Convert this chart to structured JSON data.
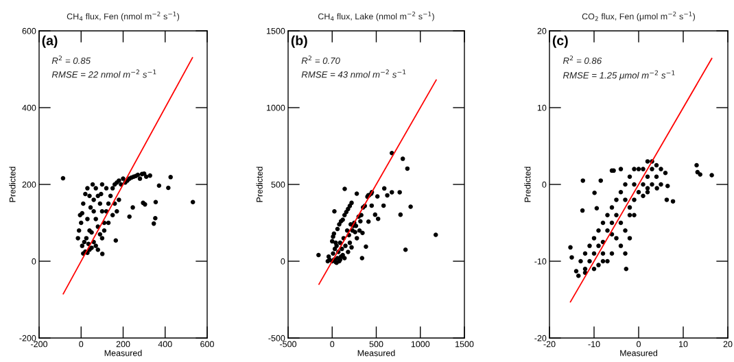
{
  "chart_data": [
    {
      "type": "scatter",
      "title": "CH$_{4}$ flux, Fen (nmol m$^{−2}$ s$^{−1}$)",
      "xlabel": "Measured",
      "ylabel": "Predicted",
      "xlim": [
        -200,
        600
      ],
      "ylim": [
        -200,
        600
      ],
      "xticks": [
        -200,
        0,
        200,
        400,
        600
      ],
      "yticks": [
        -200,
        0,
        200,
        400,
        600
      ],
      "annotations": [
        "(a)",
        "R$^{2}$ = 0.85",
        "RMSE = 22 nmol m$^{−2}$ s$^{−1}$"
      ],
      "grid": false,
      "series": [
        {
          "color": "#000000",
          "marker": "circle",
          "x": [
            -86,
            426,
            532,
            371,
            415,
            346,
            353,
            355,
            295,
            304,
            230,
            246,
            165,
            101,
            328,
            290,
            10,
            20,
            30,
            40,
            5,
            15,
            25,
            35,
            50,
            60,
            70,
            80,
            -10,
            0,
            -5,
            5,
            10,
            20,
            30,
            55,
            40,
            45,
            60,
            70,
            80,
            90,
            100,
            110,
            120,
            130,
            140,
            150,
            160,
            170,
            180,
            190,
            200,
            210,
            220,
            230,
            240,
            250,
            260,
            270,
            280,
            300,
            310,
            160,
            170,
            180,
            150,
            130,
            110,
            100,
            90,
            80,
            70,
            100,
            120,
            60,
            30,
            40,
            50,
            -15,
            95
          ],
          "values": [
            216,
            219,
            154,
            197,
            191,
            98,
            112,
            154,
            152,
            148,
            116,
            140,
            54,
            19,
            223,
            227,
            20,
            25,
            22,
            30,
            40,
            50,
            60,
            45,
            35,
            50,
            40,
            30,
            80,
            100,
            120,
            125,
            150,
            175,
            190,
            200,
            170,
            140,
            130,
            110,
            90,
            70,
            60,
            100,
            130,
            150,
            170,
            190,
            200,
            205,
            210,
            200,
            215,
            205,
            210,
            215,
            218,
            220,
            222,
            225,
            215,
            228,
            220,
            150,
            130,
            160,
            120,
            100,
            80,
            130,
            150,
            170,
            190,
            200,
            190,
            160,
            110,
            80,
            75,
            60,
            175
          ]
        },
        {
          "type": "line",
          "color": "#ff0000",
          "x": [
            -85,
            530
          ],
          "values": [
            -85,
            530
          ]
        }
      ]
    },
    {
      "type": "scatter",
      "title": "CH$_{4}$ flux, Lake (nmol m$^{−2}$ s$^{−1}$)",
      "xlabel": "Measured",
      "ylabel": "Predicted",
      "xlim": [
        -500,
        1500
      ],
      "ylim": [
        -500,
        1500
      ],
      "xticks": [
        -500,
        0,
        500,
        1000,
        1500
      ],
      "yticks": [
        -500,
        0,
        500,
        1000,
        1500
      ],
      "annotations": [
        "(b)",
        "R$^{2}$ = 0.70",
        "RMSE = 43 nmol m$^{−2}$ s$^{−1}$"
      ],
      "grid": false,
      "series": [
        {
          "color": "#000000",
          "marker": "circle",
          "x": [
            677,
            801,
            853,
            1175,
            832,
            890,
            775,
            766,
            677,
            591,
            625,
            142,
            279,
            521,
            487,
            412,
            344,
            339,
            383,
            -155,
            25,
            513,
            583,
            448,
            443,
            0,
            20,
            40,
            60,
            80,
            100,
            10,
            30,
            50,
            70,
            90,
            110,
            130,
            150,
            170,
            190,
            210,
            230,
            250,
            270,
            0,
            10,
            20,
            40,
            60,
            80,
            100,
            120,
            140,
            160,
            180,
            200,
            220,
            240,
            260,
            280,
            300,
            320,
            120,
            140,
            -30,
            -40,
            -50,
            50,
            90,
            200,
            220,
            180,
            350,
            370,
            400,
            410,
            420,
            450,
            330,
            310
          ],
          "values": [
            704,
            667,
            603,
            172,
            75,
            355,
            303,
            449,
            449,
            474,
            429,
            471,
            440,
            276,
            303,
            258,
            184,
            20,
            95,
            40,
            325,
            422,
            362,
            362,
            440,
            0,
            10,
            -5,
            20,
            0,
            30,
            50,
            80,
            100,
            60,
            120,
            80,
            150,
            100,
            200,
            170,
            240,
            200,
            250,
            230,
            130,
            160,
            180,
            120,
            210,
            240,
            260,
            270,
            300,
            320,
            340,
            360,
            380,
            230,
            190,
            150,
            290,
            260,
            40,
            20,
            10,
            30,
            0,
            -10,
            10,
            120,
            90,
            60,
            350,
            360,
            420,
            430,
            430,
            450,
            300,
            200
          ]
        },
        {
          "type": "line",
          "color": "#ff0000",
          "x": [
            -150,
            1180
          ],
          "values": [
            -150,
            1180
          ]
        }
      ]
    },
    {
      "type": "scatter",
      "title": "CO$_{2}$ flux, Fen (μmol m$^{−2}$ s$^{−1}$)",
      "xlabel": "Measured",
      "ylabel": "Predicted",
      "xlim": [
        -20,
        20
      ],
      "ylim": [
        -20,
        20
      ],
      "xticks": [
        -20,
        -10,
        0,
        10,
        20
      ],
      "yticks": [
        -20,
        -10,
        0,
        10,
        20
      ],
      "annotations": [
        "(c)",
        "R$^{2}$ = 0.86",
        "RMSE = 1.25 μmol m$^{−2}$ s$^{−1}$"
      ],
      "grid": false,
      "series": [
        {
          "color": "#000000",
          "marker": "circle",
          "x": [
            13.0,
            13.2,
            13.8,
            16.4,
            7.7,
            -12.5,
            -8.5,
            -9.9,
            -12.6,
            -9.4,
            -6.0,
            -5.6,
            -15.3,
            -15.0,
            -14.0,
            -13.5,
            -2.8,
            6.3,
            6.5,
            6.0,
            4.1,
            -12,
            -11,
            -12,
            -10,
            -9,
            -8,
            -7,
            -6,
            -10,
            -9,
            -8,
            -7,
            -6,
            -7,
            -6,
            -5,
            -4,
            -3,
            -2,
            -5,
            -4,
            -3,
            -2,
            -1,
            -3,
            -2,
            -1,
            0,
            1,
            0,
            1,
            2,
            3,
            2,
            3,
            4,
            4,
            5,
            3,
            2,
            -1,
            -4,
            -5,
            -4,
            -3,
            -8,
            -11,
            -13,
            -12,
            -1,
            -2,
            -6,
            -8,
            1,
            2,
            -10,
            -9,
            5
          ],
          "values": [
            2.5,
            1.6,
            1.3,
            1.2,
            -2.2,
            0.5,
            0.5,
            -1.1,
            -3.4,
            -3.1,
            1.8,
            1.8,
            -8.2,
            -9.5,
            -11.3,
            -11.9,
            -11.0,
            -2.0,
            -0.2,
            1.5,
            -0.5,
            -11,
            -10,
            -9,
            -9,
            -8,
            -9,
            -10,
            -9,
            -7,
            -6,
            -5,
            -4,
            -3,
            -6,
            -5,
            -4,
            -5,
            -6,
            -7,
            -2,
            -1,
            -2,
            -3,
            -4,
            0,
            1,
            0,
            -1,
            0,
            2,
            2,
            3,
            3,
            1,
            2,
            2.5,
            1,
            0,
            0,
            -1,
            2,
            2,
            -7,
            -8,
            -9,
            -10,
            -8,
            -10,
            -11.5,
            -2,
            -4,
            -6.5,
            -7.5,
            -1.5,
            -0.5,
            -11,
            -10.5,
            2
          ]
        },
        {
          "type": "line",
          "color": "#ff0000",
          "x": [
            -15.3,
            16.4
          ],
          "values": [
            -15.3,
            16.4
          ]
        }
      ]
    }
  ]
}
